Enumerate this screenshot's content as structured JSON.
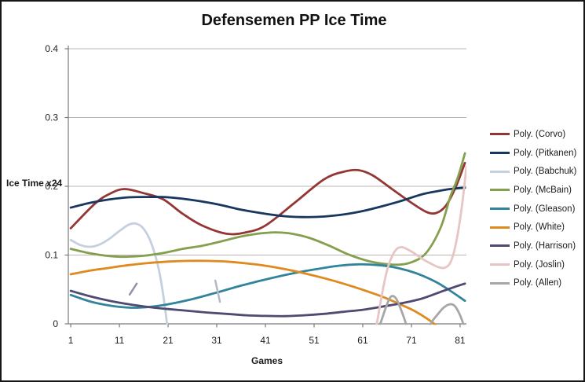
{
  "chart": {
    "title": "Defensemen PP Ice Time",
    "x_axis_label": "Games",
    "y_axis_label": "Ice Time x24"
  },
  "chart_data": {
    "type": "line",
    "title": "Defensemen PP Ice Time",
    "xlabel": "Games",
    "ylabel": "Ice Time x24",
    "xlim": [
      0.5,
      82.3
    ],
    "ylim": [
      0,
      0.4
    ],
    "x_ticks": [
      1,
      11,
      21,
      31,
      41,
      51,
      61,
      71,
      81
    ],
    "y_ticks": [
      0,
      0.1,
      0.2,
      0.3,
      0.4
    ],
    "grid": "horizontal-major",
    "legend_position": "right",
    "gridline_color": "#beb4b4",
    "axis_color": "#7a7a7a",
    "series": [
      {
        "name": "Poly. (Corvo)",
        "color": "#943634",
        "segments": [
          [
            [
              1,
              0.139
            ],
            [
              6,
              0.175
            ],
            [
              9,
              0.189
            ],
            [
              12,
              0.196
            ],
            [
              16,
              0.19
            ],
            [
              20,
              0.181
            ],
            [
              24,
              0.16
            ],
            [
              28,
              0.143
            ],
            [
              33,
              0.131
            ],
            [
              37,
              0.133
            ],
            [
              41,
              0.143
            ],
            [
              47,
              0.176
            ],
            [
              53,
              0.21
            ],
            [
              57,
              0.221
            ],
            [
              60,
              0.2235
            ],
            [
              63,
              0.216
            ],
            [
              67,
              0.196
            ],
            [
              71,
              0.176
            ],
            [
              74,
              0.163
            ],
            [
              76,
              0.161
            ],
            [
              78,
              0.171
            ],
            [
              80,
              0.197
            ],
            [
              82,
              0.234
            ]
          ]
        ]
      },
      {
        "name": "Poly. (Pitkanen)",
        "color": "#17375E",
        "segments": [
          [
            [
              1,
              0.169
            ],
            [
              5,
              0.176
            ],
            [
              9,
              0.181
            ],
            [
              13,
              0.184
            ],
            [
              17,
              0.1845
            ],
            [
              21,
              0.184
            ],
            [
              26,
              0.18
            ],
            [
              31,
              0.174
            ],
            [
              36,
              0.166
            ],
            [
              41,
              0.16
            ],
            [
              45,
              0.1565
            ],
            [
              49,
              0.1552
            ],
            [
              53,
              0.156
            ],
            [
              57,
              0.159
            ],
            [
              61,
              0.164
            ],
            [
              65,
              0.171
            ],
            [
              69,
              0.179
            ],
            [
              73,
              0.188
            ],
            [
              76,
              0.1925
            ],
            [
              79,
              0.196
            ],
            [
              82,
              0.198
            ]
          ]
        ]
      },
      {
        "name": "Poly. (Babchuk)",
        "color": "#C4D0DF",
        "segments": [
          [
            [
              1,
              0.122
            ],
            [
              3,
              0.1145
            ],
            [
              5,
              0.112
            ],
            [
              7,
              0.1155
            ],
            [
              9,
              0.124
            ],
            [
              11,
              0.135
            ],
            [
              13,
              0.1445
            ],
            [
              14.5,
              0.1455
            ],
            [
              16,
              0.138
            ],
            [
              17.5,
              0.118
            ],
            [
              19,
              0.082
            ],
            [
              20,
              0.042
            ],
            [
              21,
              -0.012
            ]
          ]
        ]
      },
      {
        "name": "Poly. (McBain)",
        "color": "#84A04E",
        "segments": [
          [
            [
              1,
              0.109
            ],
            [
              5,
              0.1025
            ],
            [
              9,
              0.0985
            ],
            [
              12,
              0.0975
            ],
            [
              16,
              0.099
            ],
            [
              20,
              0.103
            ],
            [
              24,
              0.109
            ],
            [
              28,
              0.1135
            ],
            [
              32,
              0.12
            ],
            [
              36,
              0.127
            ],
            [
              40,
              0.1315
            ],
            [
              43,
              0.133
            ],
            [
              46,
              0.1315
            ],
            [
              50,
              0.125
            ],
            [
              54,
              0.114
            ],
            [
              58,
              0.101
            ],
            [
              62,
              0.0915
            ],
            [
              65,
              0.0875
            ],
            [
              68,
              0.086
            ],
            [
              71,
              0.0895
            ],
            [
              74,
              0.103
            ],
            [
              77,
              0.14
            ],
            [
              79,
              0.185
            ],
            [
              80.5,
              0.212
            ],
            [
              82,
              0.248
            ]
          ]
        ]
      },
      {
        "name": "Poly. (Gleason)",
        "color": "#31849B",
        "segments": [
          [
            [
              1,
              0.042
            ],
            [
              5,
              0.0325
            ],
            [
              9,
              0.0265
            ],
            [
              13,
              0.0235
            ],
            [
              17,
              0.0245
            ],
            [
              21,
              0.0285
            ],
            [
              26,
              0.036
            ],
            [
              31,
              0.0455
            ],
            [
              36,
              0.0555
            ],
            [
              41,
              0.0645
            ],
            [
              46,
              0.0725
            ],
            [
              51,
              0.079
            ],
            [
              56,
              0.0845
            ],
            [
              60,
              0.0865
            ],
            [
              64,
              0.0855
            ],
            [
              68,
              0.0815
            ],
            [
              72,
              0.0735
            ],
            [
              76,
              0.061
            ],
            [
              79,
              0.048
            ],
            [
              82,
              0.0335
            ]
          ]
        ]
      },
      {
        "name": "Poly. (White)",
        "color": "#DE8A1E",
        "segments": [
          [
            [
              1,
              0.072
            ],
            [
              5,
              0.0775
            ],
            [
              9,
              0.0815
            ],
            [
              13,
              0.0855
            ],
            [
              17,
              0.0885
            ],
            [
              21,
              0.0905
            ],
            [
              25,
              0.0915
            ],
            [
              29,
              0.0915
            ],
            [
              33,
              0.0905
            ],
            [
              37,
              0.088
            ],
            [
              41,
              0.0845
            ],
            [
              45,
              0.0795
            ],
            [
              49,
              0.0735
            ],
            [
              53,
              0.0665
            ],
            [
              57,
              0.0585
            ],
            [
              61,
              0.0495
            ],
            [
              65,
              0.0395
            ],
            [
              68,
              0.0305
            ],
            [
              71,
              0.021
            ],
            [
              73,
              0.013
            ],
            [
              75.5,
              0.001
            ],
            [
              77,
              -0.012
            ]
          ]
        ]
      },
      {
        "name": "Poly. (Harrison)",
        "color": "#4E4A72",
        "segments": [
          [
            [
              1,
              0.048
            ],
            [
              5,
              0.04
            ],
            [
              9,
              0.0335
            ],
            [
              13,
              0.0285
            ],
            [
              17,
              0.0245
            ],
            [
              21,
              0.0215
            ],
            [
              25,
              0.019
            ],
            [
              29,
              0.0165
            ],
            [
              33,
              0.0145
            ],
            [
              37,
              0.0125
            ],
            [
              41,
              0.0115
            ],
            [
              45,
              0.0112
            ],
            [
              49,
              0.0125
            ],
            [
              53,
              0.0145
            ],
            [
              57,
              0.0175
            ],
            [
              61,
              0.0205
            ],
            [
              65,
              0.025
            ],
            [
              69,
              0.03
            ],
            [
              73,
              0.0365
            ],
            [
              77,
              0.0465
            ],
            [
              80,
              0.054
            ],
            [
              82,
              0.0585
            ]
          ]
        ]
      },
      {
        "name": "Poly. (Joslin)",
        "color": "#E6C5C3",
        "segments": [
          [
            [
              63,
              -0.025
            ],
            [
              64,
              0.005
            ],
            [
              65,
              0.045
            ],
            [
              66,
              0.078
            ],
            [
              67,
              0.098
            ],
            [
              68,
              0.109
            ],
            [
              69,
              0.1115
            ],
            [
              70,
              0.109
            ],
            [
              71.5,
              0.103
            ],
            [
              73,
              0.0955
            ],
            [
              75,
              0.0875
            ],
            [
              76.5,
              0.0825
            ],
            [
              77.8,
              0.0815
            ],
            [
              79,
              0.089
            ],
            [
              80,
              0.112
            ],
            [
              81,
              0.152
            ],
            [
              81.8,
              0.196
            ],
            [
              82.3,
              0.229
            ]
          ]
        ]
      },
      {
        "name": "Poly. (Allen)",
        "color": "#A6A6A6",
        "segments": [
          [
            [
              63.8,
              -0.015
            ],
            [
              64.8,
              0.004
            ],
            [
              65.6,
              0.021
            ],
            [
              66.5,
              0.037
            ],
            [
              67.2,
              0.0405
            ],
            [
              68,
              0.035
            ],
            [
              69,
              0.018
            ],
            [
              69.9,
              0.0
            ],
            [
              70.7,
              -0.018
            ]
          ],
          [
            [
              74.1,
              -0.012
            ],
            [
              75.1,
              0.002
            ],
            [
              76.3,
              0.013
            ],
            [
              77.6,
              0.0235
            ],
            [
              78.9,
              0.0285
            ],
            [
              79.9,
              0.026
            ],
            [
              80.8,
              0.0155
            ],
            [
              81.6,
              0.001
            ],
            [
              82.2,
              -0.014
            ]
          ]
        ]
      }
    ],
    "stray_fragments": [
      {
        "color": "#9193AE",
        "points": [
          [
            13.1,
            0.0425
          ],
          [
            14.55,
            0.0585
          ]
        ]
      },
      {
        "color": "#B2B8C4",
        "points": [
          [
            30.7,
            0.063
          ],
          [
            31.65,
            0.032
          ]
        ]
      }
    ]
  }
}
